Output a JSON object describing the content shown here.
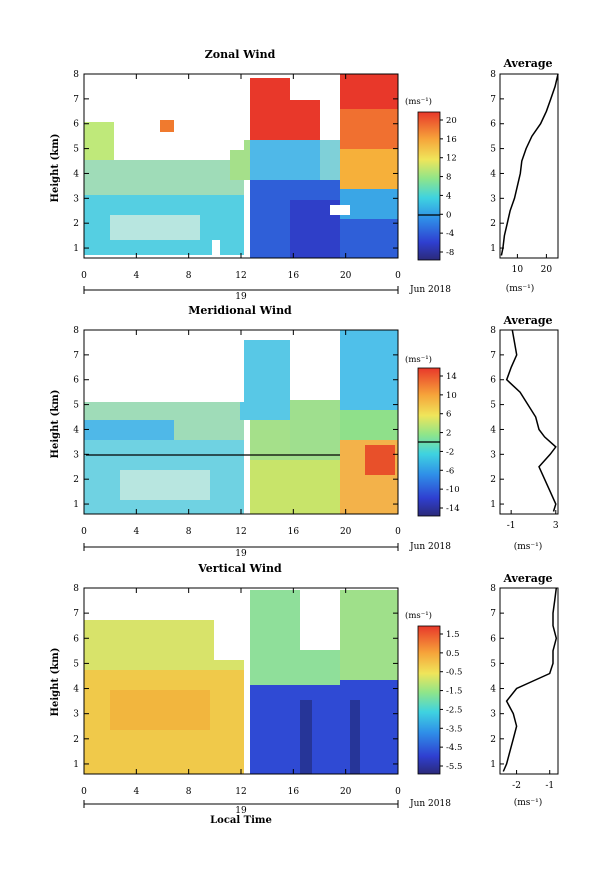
{
  "figure": {
    "x_axis_label": "Local Time",
    "x_ticks": [
      "0",
      "4",
      "8",
      "12",
      "16",
      "20",
      "0"
    ],
    "day_label": "19",
    "date_label": "Jun 2018",
    "y_axis_label": "Height (km)",
    "y_ticks": [
      "1",
      "2",
      "3",
      "4",
      "5",
      "6",
      "7",
      "8"
    ],
    "avg_unit": "(ms⁻¹)",
    "cb_unit": "(ms⁻¹)"
  },
  "chart_data": [
    {
      "type": "heatmap",
      "title": "Zonal Wind",
      "xlabel": "",
      "ylabel": "Height (km)",
      "xlim": [
        0,
        24
      ],
      "ylim": [
        0.6,
        8
      ],
      "colorbar": {
        "unit": "(ms⁻¹)",
        "labels": [
          "20",
          "16",
          "12",
          "8",
          "4",
          "0",
          "-4",
          "-8"
        ],
        "range": [
          -10,
          22
        ]
      },
      "average_profile": {
        "title": "Average",
        "xlabel": "(ms⁻¹)",
        "xticks": [
          "10",
          "20"
        ],
        "xlim": [
          4,
          24
        ],
        "height_km": [
          0.7,
          1.0,
          1.5,
          2.0,
          2.5,
          3.0,
          3.5,
          4.0,
          4.5,
          5.0,
          5.5,
          6.0,
          6.5,
          7.0,
          7.5,
          8.0
        ],
        "value": [
          4.5,
          5.0,
          5.5,
          6.5,
          7.5,
          9.0,
          10.0,
          11.0,
          11.5,
          13.0,
          15.0,
          18.0,
          20.0,
          21.5,
          23.0,
          24.0
        ]
      }
    },
    {
      "type": "heatmap",
      "title": "Meridional Wind",
      "xlabel": "",
      "ylabel": "Height (km)",
      "xlim": [
        0,
        24
      ],
      "ylim": [
        0.6,
        8
      ],
      "colorbar": {
        "unit": "(ms⁻¹)",
        "labels": [
          "14",
          "10",
          "6",
          "2",
          "-2",
          "-6",
          "-10",
          "-14"
        ],
        "range": [
          -16,
          16
        ]
      },
      "average_profile": {
        "title": "Average",
        "xlabel": "(ms⁻¹)",
        "xticks": [
          "-1",
          "3"
        ],
        "xlim": [
          -2,
          3.2
        ],
        "height_km": [
          0.7,
          1.0,
          1.5,
          2.0,
          2.5,
          3.0,
          3.3,
          3.7,
          4.0,
          4.5,
          5.0,
          5.5,
          6.0,
          6.5,
          7.0,
          7.5,
          8.0
        ],
        "value": [
          2.8,
          3.0,
          2.5,
          2.0,
          1.5,
          2.5,
          3.0,
          2.0,
          1.5,
          1.2,
          0.5,
          -0.2,
          -1.4,
          -1.0,
          -0.5,
          -0.7,
          -0.9
        ]
      }
    },
    {
      "type": "heatmap",
      "title": "Vertical Wind",
      "xlabel": "Local Time",
      "ylabel": "Height (km)",
      "xlim": [
        0,
        24
      ],
      "ylim": [
        0.6,
        8
      ],
      "colorbar": {
        "unit": "(ms⁻¹)",
        "labels": [
          "1.5",
          "0.5",
          "-0.5",
          "-1.5",
          "-2.5",
          "-3.5",
          "-4.5",
          "-5.5"
        ],
        "range": [
          -6,
          2
        ]
      },
      "average_profile": {
        "title": "Average",
        "xlabel": "(ms⁻¹)",
        "xticks": [
          "-2",
          "-1"
        ],
        "xlim": [
          -2.5,
          -0.75
        ],
        "height_km": [
          0.7,
          1.0,
          1.5,
          2.0,
          2.5,
          3.0,
          3.5,
          4.0,
          4.3,
          4.6,
          5.0,
          5.5,
          6.0,
          6.5,
          7.0,
          7.5,
          8.0
        ],
        "value": [
          -2.4,
          -2.3,
          -2.2,
          -2.1,
          -2.0,
          -2.1,
          -2.3,
          -2.0,
          -1.5,
          -1.0,
          -0.9,
          -0.9,
          -0.8,
          -0.9,
          -0.9,
          -0.85,
          -0.8
        ]
      }
    }
  ]
}
